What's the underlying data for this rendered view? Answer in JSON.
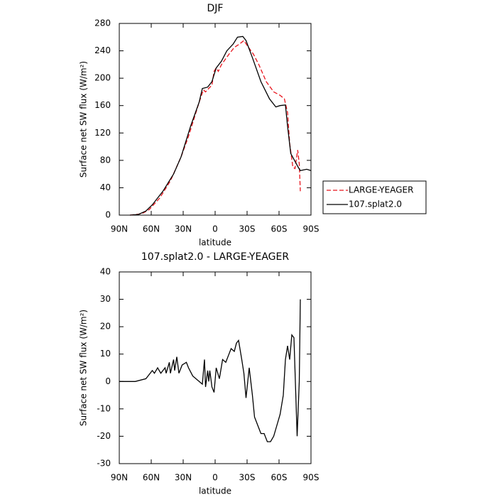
{
  "chart_data": [
    {
      "type": "line",
      "title": "DJF",
      "xlabel": "latitude",
      "ylabel": "Surface net SW flux (W/m²)",
      "xlim": [
        90,
        -90
      ],
      "ylim": [
        0,
        280
      ],
      "xticks": [
        {
          "value": 90,
          "label": "90N"
        },
        {
          "value": 60,
          "label": "60N"
        },
        {
          "value": 30,
          "label": "30N"
        },
        0,
        {
          "value": -30,
          "label": "30S"
        },
        {
          "value": -60,
          "label": "60S"
        },
        {
          "value": -90,
          "label": "90S"
        }
      ],
      "yticks": [
        0,
        40,
        80,
        120,
        160,
        200,
        240,
        280
      ],
      "legend": "right",
      "series": [
        {
          "name": "LARGE-YEAGER",
          "color": "#e8141c",
          "linestyle": "dashed",
          "x": [
            80,
            69,
            62,
            52,
            42,
            32,
            25,
            15,
            11,
            9,
            6,
            3,
            1,
            -1,
            -3,
            -6,
            -13,
            -18,
            -23,
            -27,
            -30,
            -36,
            -41,
            -48,
            -55,
            -61,
            -65,
            -68,
            -70,
            -73,
            -75,
            -77,
            -77.5,
            -79,
            -80
          ],
          "values": [
            0,
            2,
            8,
            25,
            50,
            85,
            115,
            165,
            183,
            180,
            185,
            190,
            210,
            215,
            210,
            220,
            235,
            245,
            250,
            255,
            248,
            235,
            220,
            195,
            180,
            175,
            170,
            150,
            105,
            70,
            68,
            90,
            95,
            75,
            35
          ]
        },
        {
          "name": "107.splat2.0",
          "color": "#000000",
          "linestyle": "solid",
          "x": [
            80,
            72,
            65,
            59,
            49,
            39,
            32,
            23,
            15,
            12,
            7,
            3,
            -1,
            -6,
            -11,
            -17,
            -21,
            -26,
            -29,
            -35,
            -43,
            -51,
            -57,
            -61,
            -66,
            -68,
            -71,
            -78,
            -80,
            -86,
            -90
          ],
          "values": [
            0,
            1,
            6,
            15,
            35,
            60,
            85,
            130,
            165,
            185,
            187,
            195,
            215,
            225,
            240,
            250,
            260,
            261,
            255,
            230,
            195,
            170,
            158,
            160,
            161,
            130,
            90,
            70,
            65,
            67,
            65
          ]
        }
      ]
    },
    {
      "type": "line",
      "title": "107.splat2.0 - LARGE-YEAGER",
      "xlabel": "latitude",
      "ylabel": "Surface net SW flux (W/m²)",
      "xlim": [
        90,
        -90
      ],
      "ylim": [
        -30,
        40
      ],
      "xticks": [
        {
          "value": 90,
          "label": "90N"
        },
        {
          "value": 60,
          "label": "60N"
        },
        {
          "value": 30,
          "label": "30N"
        },
        0,
        {
          "value": -30,
          "label": "30S"
        },
        {
          "value": -60,
          "label": "60S"
        },
        {
          "value": -90,
          "label": "90S"
        }
      ],
      "yticks": [
        -30,
        -20,
        -10,
        0,
        10,
        20,
        30,
        40
      ],
      "color": "#000000",
      "x": [
        90,
        75,
        65,
        59,
        57,
        54,
        51,
        47,
        46,
        43,
        42,
        39,
        38,
        36,
        34,
        31,
        27,
        25,
        21,
        15,
        12,
        10,
        9,
        7,
        6,
        5,
        3,
        1,
        -1,
        -4,
        -7,
        -10,
        -13,
        -15,
        -18,
        -20,
        -22,
        -25,
        -27,
        -29,
        -32,
        -35,
        -37,
        -41,
        -43,
        -46,
        -49,
        -52,
        -55,
        -58,
        -61,
        -64,
        -66,
        -68,
        -70,
        -72,
        -74,
        -77,
        -79,
        -80
      ],
      "values": [
        0,
        0,
        1,
        4,
        3,
        5,
        3,
        5,
        3,
        7,
        3,
        8,
        4,
        9,
        3,
        6,
        7,
        5,
        2,
        0,
        -1,
        8,
        -2,
        4,
        0,
        4,
        -2,
        -4,
        5,
        1,
        8,
        7,
        10,
        12,
        11,
        14,
        15,
        8,
        3,
        -6,
        5,
        -5,
        -13,
        -17,
        -19,
        -19,
        -22,
        -22,
        -20,
        -16,
        -12,
        -5,
        8,
        13,
        8,
        17,
        16,
        -20,
        0,
        30
      ]
    }
  ]
}
